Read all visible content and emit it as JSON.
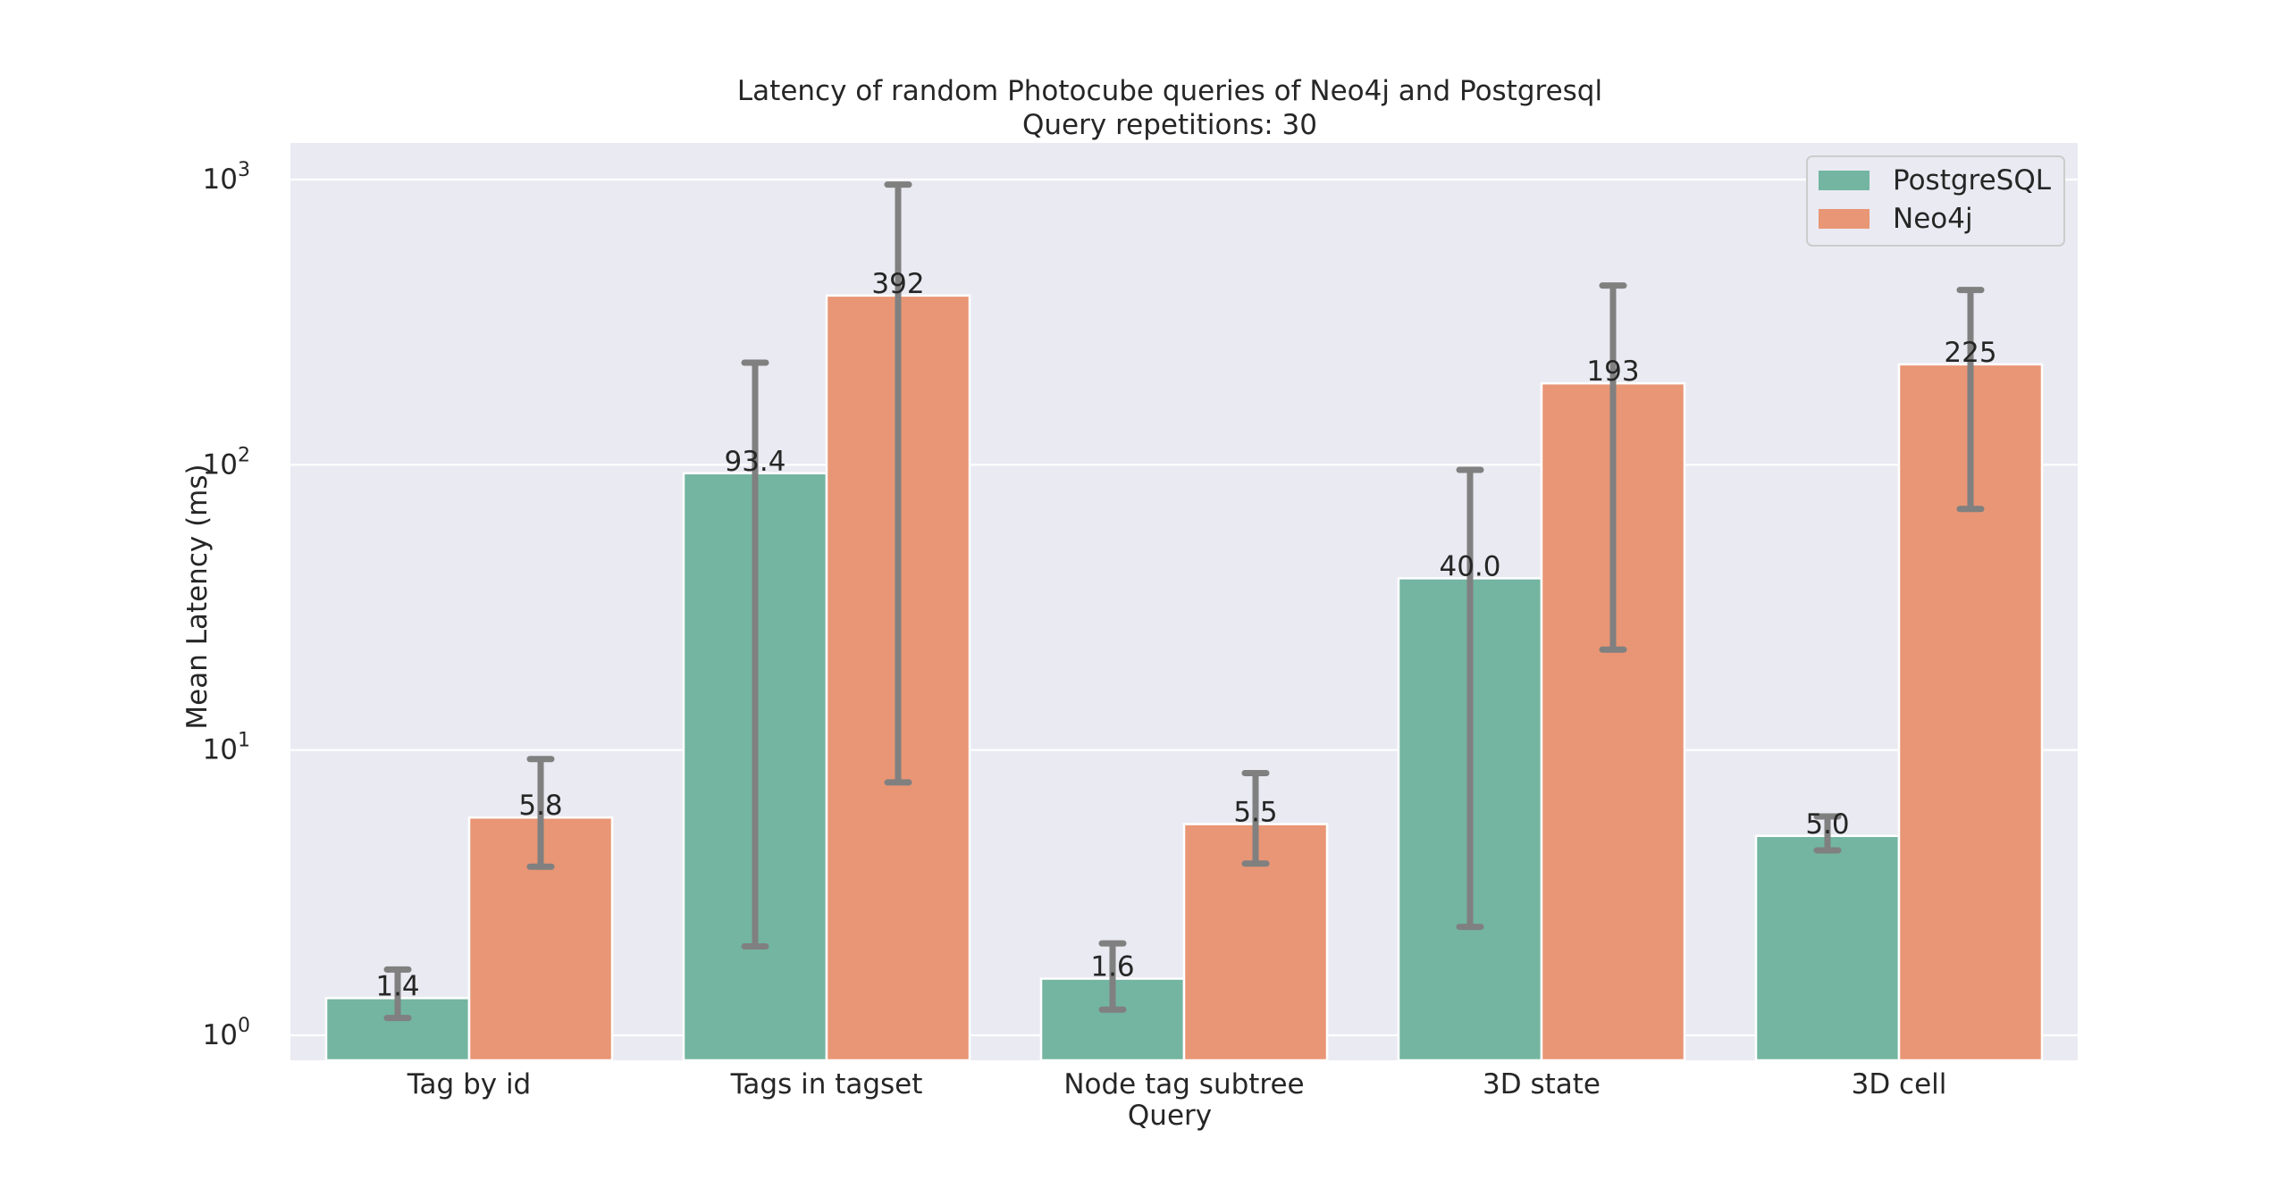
{
  "chart_data": {
    "type": "bar",
    "title": "Latency of random Photocube queries of Neo4j and Postgresql",
    "subtitle": "Query repetitions: 30",
    "xlabel": "Query",
    "ylabel": "Mean Latency (ms)",
    "yscale": "log",
    "ylim": [
      0.8,
      1350
    ],
    "yticks": [
      {
        "base": "10",
        "exp": "0",
        "value": 1
      },
      {
        "base": "10",
        "exp": "1",
        "value": 10
      },
      {
        "base": "10",
        "exp": "2",
        "value": 100
      },
      {
        "base": "10",
        "exp": "3",
        "value": 1000
      }
    ],
    "grid": true,
    "legend_position": "top-right",
    "categories": [
      "Tag by id",
      "Tags in tagset",
      "Node tag subtree",
      "3D state",
      "3D cell"
    ],
    "series": [
      {
        "name": "PostgreSQL",
        "color": "#73b5a1",
        "values": [
          1.35,
          93.4,
          1.58,
          40.0,
          5.0
        ],
        "labels": [
          "1.4",
          "93.4",
          "1.6",
          "40.0",
          "5.0"
        ],
        "error_low": [
          1.15,
          2.05,
          1.23,
          2.4,
          4.45
        ],
        "error_high": [
          1.7,
          228,
          2.1,
          96,
          5.85
        ]
      },
      {
        "name": "Neo4j",
        "color": "#e89675",
        "values": [
          5.8,
          392,
          5.5,
          193,
          225
        ],
        "labels": [
          "5.8",
          "392",
          "5.5",
          "193",
          "225"
        ],
        "error_low": [
          3.9,
          7.7,
          4.0,
          22.5,
          70
        ],
        "error_high": [
          9.3,
          960,
          8.3,
          425,
          410
        ]
      }
    ],
    "colors": {
      "plot_background": "#eaeaf2",
      "grid": "#ffffff",
      "error_bar": "#808080",
      "text": "#262626"
    }
  }
}
